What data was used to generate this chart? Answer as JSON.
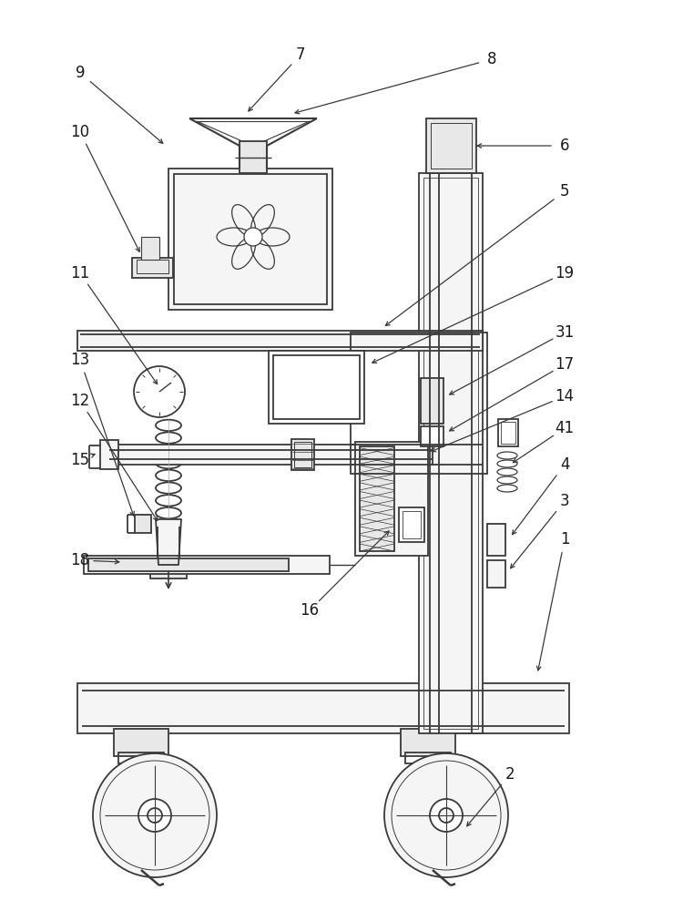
{
  "bg_color": "#ffffff",
  "line_color": "#3a3a3a",
  "label_color": "#1a1a1a",
  "label_fontsize": 12,
  "lw": 1.3,
  "gray_fill": "#e8e8e8",
  "light_fill": "#f5f5f5",
  "hatch_fill": "#d0d0d0"
}
